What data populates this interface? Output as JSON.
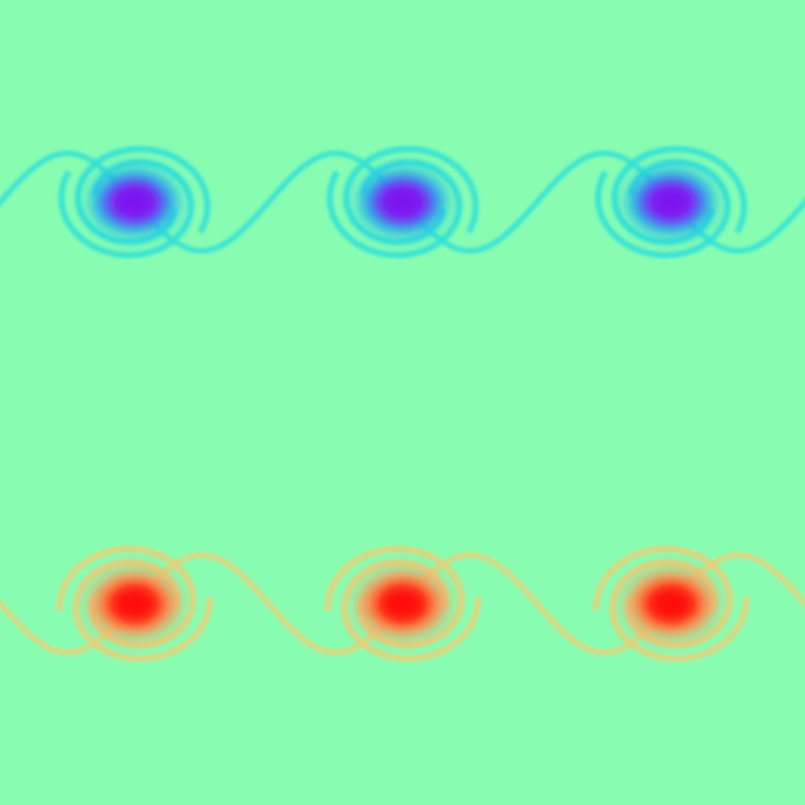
{
  "field": {
    "background_color": "#88fdb2",
    "top_band": {
      "sign": "negative",
      "filament_color": "#34e2d6",
      "rim_color": "#14bdf0",
      "core_color": "#7a14f0",
      "vortex_count": 3
    },
    "bottom_band": {
      "sign": "positive",
      "filament_color": "#e6d27a",
      "rim_color": "#ff9a5a",
      "core_color": "#ff0a0a",
      "vortex_count": 3
    }
  }
}
